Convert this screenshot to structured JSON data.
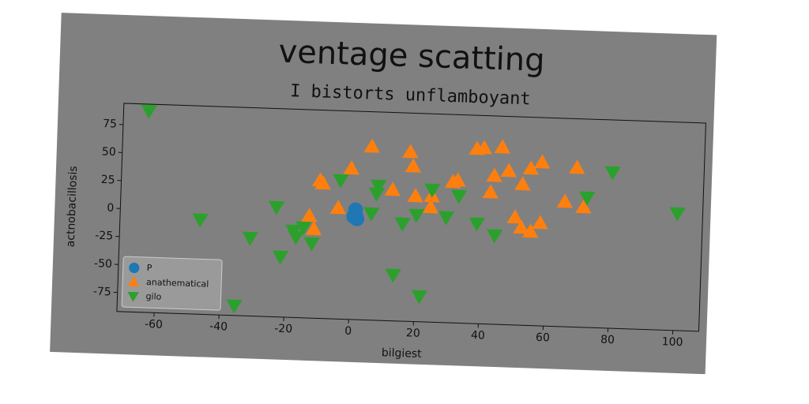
{
  "chart_data": {
    "type": "scatter",
    "title": "ventage scatting",
    "subtitle": "I bistorts unflamboyant",
    "x_label": "bilgiest",
    "y_label": "actnobacillosis",
    "xlim": [
      -71.5,
      108
    ],
    "ylim": [
      -92,
      94
    ],
    "xticks": [
      -60,
      -40,
      -20,
      0,
      20,
      40,
      60,
      80,
      100
    ],
    "yticks": [
      -75,
      -50,
      -25,
      0,
      25,
      50,
      75
    ],
    "legend": "lower left",
    "series": [
      {
        "name": "P",
        "color": "#1f77b4",
        "marker": "circle",
        "x": [
          1,
          0.5,
          1.5,
          1
        ],
        "values": [
          6,
          0,
          -2,
          3
        ]
      },
      {
        "name": "anathematical",
        "color": "#ff7f0e",
        "marker": "triangle-up",
        "x": [
          5.4,
          -0.7,
          -10.2,
          -9.3,
          -4.4,
          -13.2,
          -11.7,
          17.3,
          18.3,
          12.2,
          19.3,
          24.1,
          24.4,
          30.7,
          32.2,
          37.8,
          40,
          45.6,
          43.4,
          47.8,
          42.4,
          52.2,
          54.6,
          58,
          50.2,
          52.2,
          55.1,
          58,
          65.4,
          68.8,
          71.2
        ],
        "values": [
          63,
          42.8,
          31.2,
          28.6,
          7.2,
          -0.7,
          -12.4,
          59.3,
          46.6,
          25,
          20.1,
          10.7,
          20.6,
          33.9,
          35.4,
          64.1,
          65.1,
          66.3,
          40.6,
          45.4,
          25.8,
          33.9,
          48.2,
          54.1,
          4.1,
          -4.9,
          -8.1,
          -0.1,
          19.6,
          50.3,
          15.3
        ]
      },
      {
        "name": "gilo",
        "color": "#2ca02c",
        "marker": "triangle-down",
        "x": [
          -63.7,
          -46.8,
          -31.2,
          -23.4,
          -21.7,
          -18,
          -17.1,
          -14.9,
          -12.2,
          -3.9,
          5.9,
          7.8,
          7.3,
          13.2,
          15.6,
          19.8,
          21.5,
          24.4,
          29,
          32.7,
          38.5,
          44.1,
          72.2,
          79.8,
          100.2,
          -35.4
        ],
        "values": [
          88,
          -7.5,
          -22.3,
          6,
          -38.2,
          -14.6,
          -20.1,
          -11.5,
          -25.3,
          31.9,
          3.2,
          28.1,
          21,
          -51,
          -4.9,
          3.2,
          -69.2,
          26.2,
          2,
          21.4,
          -2.7,
          -12.6,
          23.9,
          47.1,
          12.5,
          -83.2
        ]
      }
    ]
  }
}
